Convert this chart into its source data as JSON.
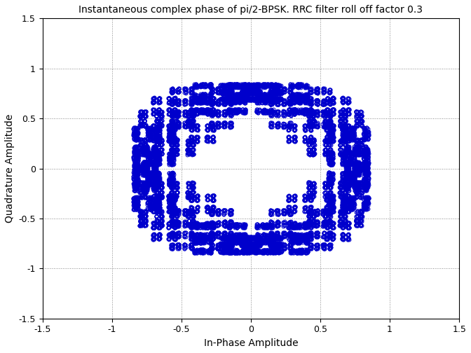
{
  "title": "Instantaneous complex phase of pi/2-BPSK. RRC filter roll off factor 0.3",
  "xlabel": "In-Phase Amplitude",
  "ylabel": "Quadrature Amplitude",
  "xlim": [
    -1.5,
    1.5
  ],
  "ylim": [
    -1.5,
    1.5
  ],
  "xticks": [
    -1.5,
    -1.0,
    -0.5,
    0.0,
    0.5,
    1.0,
    1.5
  ],
  "yticks": [
    -1.5,
    -1.0,
    -0.5,
    0.0,
    0.5,
    1.0,
    1.5
  ],
  "marker_color": "#0000CC",
  "marker_size": 3.5,
  "marker_edge_width": 0.7,
  "background_color": "#ffffff",
  "grid_color": "#888888",
  "grid_style": ":",
  "n_symbols": 3000,
  "samples_per_symbol": 8,
  "roll_off": 0.3,
  "rng_seed": 12345,
  "title_fontsize": 10,
  "label_fontsize": 10,
  "tick_fontsize": 9
}
